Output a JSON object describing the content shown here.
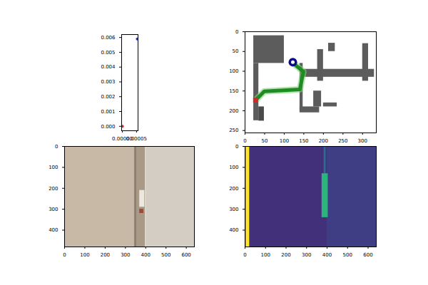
{
  "chart_data": [
    {
      "type": "scatter",
      "points": [
        {
          "x": 0,
          "y": 0,
          "color": "#d62728"
        },
        {
          "x": 5.26e-05,
          "y": 0.0059,
          "color": "#1f3fbf"
        }
      ],
      "xlim": [
        -2.6e-06,
        5.52e-05
      ],
      "xticks": [
        {
          "value": 0,
          "label": "0.00000"
        },
        {
          "value": 5e-05,
          "label": "0.00005"
        }
      ],
      "ylim": [
        -0.0003,
        0.0062
      ],
      "yticks": [
        {
          "value": 0,
          "label": "0.000"
        },
        {
          "value": 0.001,
          "label": "0.001"
        },
        {
          "value": 0.002,
          "label": "0.002"
        },
        {
          "value": 0.003,
          "label": "0.003"
        },
        {
          "value": 0.004,
          "label": "0.004"
        },
        {
          "value": 0.005,
          "label": "0.005"
        },
        {
          "value": 0.006,
          "label": "0.006"
        }
      ]
    },
    {
      "type": "map",
      "obstacles": [
        {
          "x1": 22,
          "x2": 100,
          "y1": 10,
          "y2": 80,
          "color": "#5c5c5c"
        },
        {
          "x1": 22,
          "x2": 35,
          "y1": 80,
          "y2": 225,
          "color": "#5c5c5c"
        },
        {
          "x1": 35,
          "x2": 49,
          "y1": 190,
          "y2": 226,
          "color": "#4a4a4a"
        },
        {
          "x1": 140,
          "x2": 148,
          "y1": 80,
          "y2": 200,
          "color": "#5c5c5c"
        },
        {
          "x1": 140,
          "x2": 190,
          "y1": 190,
          "y2": 205,
          "color": "#5c5c5c"
        },
        {
          "x1": 175,
          "x2": 195,
          "y1": 150,
          "y2": 190,
          "color": "#5c5c5c"
        },
        {
          "x1": 150,
          "x2": 330,
          "y1": 95,
          "y2": 115,
          "color": "#5c5c5c"
        },
        {
          "x1": 185,
          "x2": 200,
          "y1": 45,
          "y2": 125,
          "color": "#5c5c5c"
        },
        {
          "x1": 300,
          "x2": 315,
          "y1": 30,
          "y2": 125,
          "color": "#5c5c5c"
        },
        {
          "x1": 213,
          "x2": 230,
          "y1": 29,
          "y2": 50,
          "color": "#5c5c5c"
        },
        {
          "x1": 200,
          "x2": 235,
          "y1": 180,
          "y2": 190,
          "color": "#5c5c5c"
        }
      ],
      "path": {
        "x": [
          122,
          149,
          140,
          49,
          31
        ],
        "y": [
          79,
          101,
          146,
          151,
          169
        ],
        "color": "#1e8c1e"
      },
      "goal": {
        "x": 27,
        "y": 173,
        "color": "#d62728"
      },
      "agent": {
        "x": 122,
        "y": 77,
        "color": "#0a0a8c"
      },
      "xlim": [
        0,
        335
      ],
      "xticks": [
        0,
        50,
        100,
        150,
        200,
        250,
        300
      ],
      "ylim": [
        256,
        0
      ],
      "yticks": [
        0,
        50,
        100,
        150,
        200,
        250
      ]
    },
    {
      "type": "image",
      "regions": [
        {
          "x1": 0,
          "x2": 640,
          "y1": 0,
          "y2": 480,
          "color": "#c7b9a6"
        },
        {
          "x1": 400,
          "x2": 640,
          "y1": 0,
          "y2": 480,
          "color": "#d3cdc3"
        },
        {
          "x1": 345,
          "x2": 355,
          "y1": 0,
          "y2": 480,
          "color": "#8c7f6e"
        },
        {
          "x1": 355,
          "x2": 400,
          "y1": 0,
          "y2": 480,
          "color": "#a89a86"
        },
        {
          "x1": 370,
          "x2": 395,
          "y1": 210,
          "y2": 290,
          "color": "#ece8e0"
        },
        {
          "x1": 370,
          "x2": 390,
          "y1": 300,
          "y2": 320,
          "color": "#9a4a3a"
        },
        {
          "x1": 398,
          "x2": 402,
          "y1": 0,
          "y2": 480,
          "color": "#e6e2da"
        }
      ],
      "xlim": [
        0,
        640
      ],
      "xticks": [
        0,
        100,
        200,
        300,
        400,
        500,
        600
      ],
      "ylim": [
        480,
        0
      ],
      "yticks": [
        0,
        100,
        200,
        300,
        400
      ]
    },
    {
      "type": "image",
      "regions": [
        {
          "x1": 0,
          "x2": 640,
          "y1": 0,
          "y2": 480,
          "color": "#43307a"
        },
        {
          "x1": 400,
          "x2": 640,
          "y1": 0,
          "y2": 480,
          "color": "#3f3d84"
        },
        {
          "x1": 0,
          "x2": 5,
          "y1": 0,
          "y2": 480,
          "color": "#440154"
        },
        {
          "x1": 5,
          "x2": 22,
          "y1": 0,
          "y2": 480,
          "color": "#fde725"
        },
        {
          "x1": 385,
          "x2": 395,
          "y1": 0,
          "y2": 130,
          "color": "#31688e"
        },
        {
          "x1": 375,
          "x2": 405,
          "y1": 130,
          "y2": 340,
          "color": "#2db37c"
        }
      ],
      "xlim": [
        0,
        640
      ],
      "xticks": [
        0,
        100,
        200,
        300,
        400,
        500,
        600
      ],
      "ylim": [
        480,
        0
      ],
      "yticks": [
        0,
        100,
        200,
        300,
        400
      ]
    }
  ]
}
